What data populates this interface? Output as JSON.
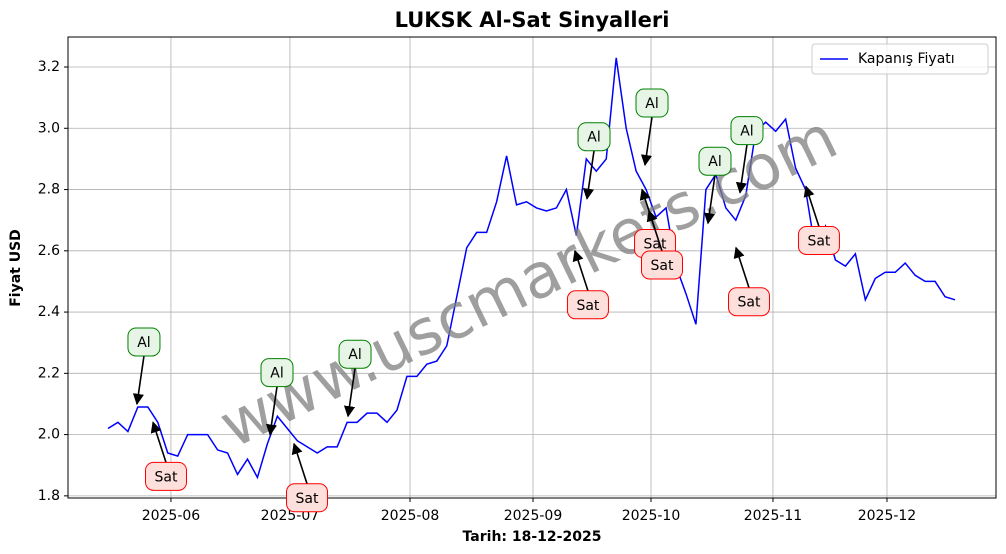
{
  "chart_data": {
    "type": "line",
    "title": "LUKSK Al-Sat Sinyalleri",
    "xlabel": "Tarih: 18-12-2025",
    "ylabel": "Fiyat USD",
    "watermark": "www.uscmarkets.com",
    "legend": "upper right",
    "grid": true,
    "series": [
      {
        "name": "Kapanış Fiyatı",
        "color": "#0000ff",
        "values": [
          2.02,
          2.04,
          2.01,
          2.09,
          2.09,
          2.04,
          1.94,
          1.93,
          2.0,
          2.0,
          2.0,
          1.95,
          1.94,
          1.87,
          1.92,
          1.86,
          1.97,
          2.06,
          2.02,
          1.98,
          1.96,
          1.94,
          1.96,
          1.96,
          2.04,
          2.04,
          2.07,
          2.07,
          2.04,
          2.08,
          2.19,
          2.19,
          2.23,
          2.24,
          2.29,
          2.45,
          2.61,
          2.66,
          2.66,
          2.76,
          2.91,
          2.75,
          2.76,
          2.74,
          2.73,
          2.74,
          2.8,
          2.65,
          2.9,
          2.86,
          2.9,
          3.23,
          3.0,
          2.86,
          2.8,
          2.71,
          2.74,
          2.55,
          2.46,
          2.36,
          2.8,
          2.85,
          2.74,
          2.7,
          2.78,
          2.99,
          3.02,
          2.99,
          3.03,
          2.87,
          2.8,
          2.6,
          2.68,
          2.57,
          2.55,
          2.59,
          2.44,
          2.51,
          2.53,
          2.53,
          2.56,
          2.52,
          2.5,
          2.5,
          2.45,
          2.44
        ]
      }
    ],
    "xlim": [
      -4.01,
      89.11
    ],
    "xticks": [
      {
        "value": 6.32,
        "label": "2025-06"
      },
      {
        "value": 18.26,
        "label": "2025-07"
      },
      {
        "value": 30.31,
        "label": "2025-08"
      },
      {
        "value": 42.65,
        "label": "2025-09"
      },
      {
        "value": 54.49,
        "label": "2025-10"
      },
      {
        "value": 66.73,
        "label": "2025-11"
      },
      {
        "value": 78.17,
        "label": "2025-12"
      }
    ],
    "ylim": [
      1.793,
      3.298
    ],
    "yticks": [
      1.8,
      {
        "value": 2,
        "label": "2.0"
      },
      2.2,
      2.4,
      2.6,
      2.8,
      {
        "value": 3,
        "label": "3.0"
      },
      3.2
    ],
    "annotations": [
      {
        "text": "Al",
        "x": 2.91,
        "y": 2.1,
        "color": "green"
      },
      {
        "text": "Sat",
        "x": 4.52,
        "y": 2.04,
        "color": "red"
      },
      {
        "text": "Al",
        "x": 16.26,
        "y": 2.0,
        "color": "green"
      },
      {
        "text": "Sat",
        "x": 18.67,
        "y": 1.97,
        "color": "red"
      },
      {
        "text": "Al",
        "x": 24.09,
        "y": 2.06,
        "color": "green"
      },
      {
        "text": "Sat",
        "x": 46.86,
        "y": 2.6,
        "color": "red"
      },
      {
        "text": "Al",
        "x": 48.07,
        "y": 2.77,
        "color": "green"
      },
      {
        "text": "Al",
        "x": 53.89,
        "y": 2.88,
        "color": "green"
      },
      {
        "text": "Sat",
        "x": 53.59,
        "y": 2.8,
        "color": "red"
      },
      {
        "text": "Sat",
        "x": 54.29,
        "y": 2.73,
        "color": "red"
      },
      {
        "text": "Al",
        "x": 60.21,
        "y": 2.69,
        "color": "green"
      },
      {
        "text": "Al",
        "x": 63.42,
        "y": 2.79,
        "color": "green"
      },
      {
        "text": "Sat",
        "x": 63.02,
        "y": 2.61,
        "color": "red"
      },
      {
        "text": "Sat",
        "x": 70.04,
        "y": 2.81,
        "color": "red"
      }
    ]
  }
}
